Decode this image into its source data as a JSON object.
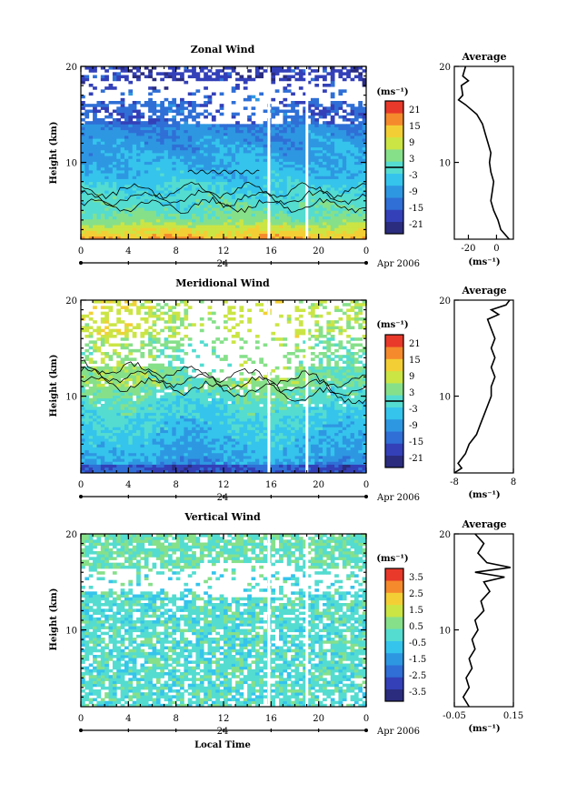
{
  "x_axis_label": "Local Time",
  "date_label": "24",
  "month_label": "Apr 2006",
  "height_label": "Height (km)",
  "unit_label": "(ms⁻¹)",
  "average_title": "Average",
  "x_ticks": [
    "0",
    "4",
    "8",
    "12",
    "16",
    "20",
    "0"
  ],
  "y_ticks": [
    "10",
    "20"
  ],
  "colors": {
    "scale": [
      "#2b2c7e",
      "#3340b8",
      "#2f6fd6",
      "#2e97e2",
      "#35c4ec",
      "#54dcd0",
      "#86e08a",
      "#cbe545",
      "#f3cf35",
      "#f58a2c",
      "#e8392a"
    ]
  },
  "chart_data": [
    {
      "type": "heatmap",
      "title": "Zonal Wind",
      "xlabel": "",
      "ylabel": "Height (km)",
      "xlim": [
        0,
        24
      ],
      "ylim": [
        2,
        20
      ],
      "colorbar_ticks": [
        "21",
        "15",
        "9",
        "3",
        "-3",
        "-9",
        "-15",
        "-21"
      ],
      "colorbar_range": [
        -24,
        24
      ],
      "zero_contour": true,
      "profile": {
        "title": "Average",
        "xlabel": "(ms⁻¹)",
        "xlim": [
          -30,
          12
        ],
        "xticks": [
          "-20",
          "0"
        ],
        "xtick_values": [
          -20,
          0
        ],
        "height": [
          2,
          3,
          4,
          5,
          6,
          7,
          8,
          9,
          10,
          11,
          12,
          13,
          14,
          15,
          16,
          16.5,
          17,
          18,
          18.5,
          19,
          20
        ],
        "value": [
          9,
          3,
          1,
          -2,
          -4,
          -3,
          -2,
          -4,
          -5,
          -4,
          -6,
          -8,
          -10,
          -14,
          -22,
          -27,
          -24,
          -25,
          -20,
          -24,
          -22
        ]
      }
    },
    {
      "type": "heatmap",
      "title": "Meridional Wind",
      "xlabel": "",
      "ylabel": "Height (km)",
      "xlim": [
        0,
        24
      ],
      "ylim": [
        2,
        20
      ],
      "colorbar_ticks": [
        "21",
        "15",
        "9",
        "3",
        "-3",
        "-9",
        "-15",
        "-21"
      ],
      "colorbar_range": [
        -24,
        24
      ],
      "zero_contour": true,
      "profile": {
        "title": "Average",
        "xlabel": "(ms⁻¹)",
        "xlim": [
          -8,
          8
        ],
        "xticks": [
          "-8",
          "8"
        ],
        "xtick_values": [
          -8,
          8
        ],
        "height": [
          2,
          2.5,
          3,
          4,
          5,
          6,
          7,
          8,
          9,
          10,
          11,
          12,
          13,
          14,
          15,
          16,
          17,
          18,
          18.5,
          19,
          19.5,
          20
        ],
        "value": [
          -8,
          -6,
          -7,
          -5,
          -4,
          -2,
          -1,
          0,
          1,
          2,
          2,
          3,
          2,
          3,
          2,
          3,
          2,
          1,
          4,
          2,
          6,
          7
        ]
      }
    },
    {
      "type": "heatmap",
      "title": "Vertical Wind",
      "xlabel": "Local Time",
      "ylabel": "Height (km)",
      "xlim": [
        0,
        24
      ],
      "ylim": [
        2,
        20
      ],
      "colorbar_ticks": [
        "3.5",
        "2.5",
        "1.5",
        "0.5",
        "-0.5",
        "-1.5",
        "-2.5",
        "-3.5"
      ],
      "colorbar_range": [
        -4,
        4
      ],
      "zero_contour": false,
      "profile": {
        "title": "Average",
        "xlabel": "(ms⁻¹)",
        "xlim": [
          -0.05,
          0.15
        ],
        "xticks": [
          "-0.05",
          "0.15"
        ],
        "xtick_values": [
          -0.05,
          0.15
        ],
        "height": [
          2,
          3,
          4,
          5,
          6,
          7,
          8,
          9,
          10,
          11,
          12,
          13,
          14,
          15,
          15.5,
          16,
          16.5,
          17,
          18,
          19,
          20
        ],
        "value": [
          0.0,
          -0.02,
          0.0,
          -0.01,
          0.01,
          0.0,
          0.02,
          0.01,
          0.03,
          0.02,
          0.05,
          0.04,
          0.07,
          0.05,
          0.12,
          0.02,
          0.14,
          0.06,
          0.03,
          0.05,
          0.02
        ]
      }
    }
  ]
}
